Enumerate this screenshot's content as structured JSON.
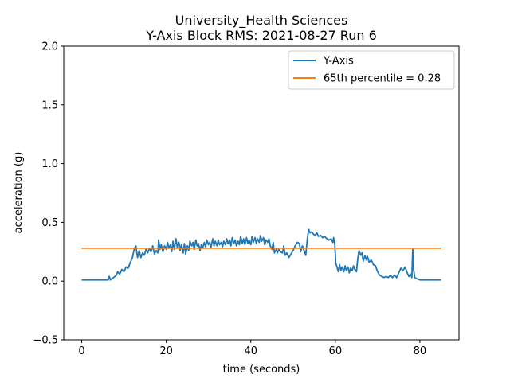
{
  "chart_data": {
    "type": "line",
    "title_line1": "University_Health Sciences",
    "title_line2": "Y-Axis Block RMS: 2021-08-27 Run 6",
    "xlabel": "time (seconds)",
    "ylabel": "acceleration (g)",
    "xlim": [
      -4.25,
      89.25
    ],
    "ylim": [
      -0.5,
      2.0
    ],
    "x_ticks": [
      0,
      20,
      40,
      60,
      80
    ],
    "x_tick_labels": [
      "0",
      "20",
      "40",
      "60",
      "80"
    ],
    "y_ticks": [
      -0.5,
      0.0,
      0.5,
      1.0,
      1.5,
      2.0
    ],
    "y_tick_labels": [
      "−0.5",
      "0.0",
      "0.5",
      "1.0",
      "1.5",
      "2.0"
    ],
    "grid": false,
    "legend_position": "upper-right",
    "series": [
      {
        "name": "Y-Axis",
        "color": "#1f77b4",
        "points": [
          [
            0,
            0.01
          ],
          [
            6.3,
            0.01
          ],
          [
            6.5,
            0.04
          ],
          [
            6.8,
            0.01
          ],
          [
            7.5,
            0.03
          ],
          [
            8.2,
            0.05
          ],
          [
            8.5,
            0.08
          ],
          [
            9,
            0.06
          ],
          [
            9.5,
            0.1
          ],
          [
            10,
            0.08
          ],
          [
            10.5,
            0.12
          ],
          [
            11,
            0.11
          ],
          [
            11.5,
            0.16
          ],
          [
            12,
            0.2
          ],
          [
            12.4,
            0.27
          ],
          [
            12.8,
            0.3
          ],
          [
            13.2,
            0.2
          ],
          [
            13.6,
            0.26
          ],
          [
            14,
            0.2
          ],
          [
            14.4,
            0.24
          ],
          [
            14.8,
            0.22
          ],
          [
            15.2,
            0.27
          ],
          [
            15.6,
            0.24
          ],
          [
            16,
            0.28
          ],
          [
            16.4,
            0.25
          ],
          [
            16.8,
            0.3
          ],
          [
            17.2,
            0.23
          ],
          [
            17.6,
            0.26
          ],
          [
            18,
            0.24
          ],
          [
            18.2,
            0.35
          ],
          [
            18.5,
            0.27
          ],
          [
            18.8,
            0.31
          ],
          [
            19.2,
            0.25
          ],
          [
            19.6,
            0.3
          ],
          [
            20,
            0.27
          ],
          [
            20.3,
            0.33
          ],
          [
            20.6,
            0.28
          ],
          [
            21,
            0.31
          ],
          [
            21.3,
            0.25
          ],
          [
            21.6,
            0.34
          ],
          [
            21.9,
            0.27
          ],
          [
            22.3,
            0.36
          ],
          [
            22.6,
            0.29
          ],
          [
            23,
            0.33
          ],
          [
            23.3,
            0.26
          ],
          [
            23.6,
            0.31
          ],
          [
            24,
            0.24
          ],
          [
            24.3,
            0.32
          ],
          [
            24.6,
            0.23
          ],
          [
            25,
            0.3
          ],
          [
            25.3,
            0.26
          ],
          [
            25.6,
            0.34
          ],
          [
            26,
            0.3
          ],
          [
            26.3,
            0.33
          ],
          [
            26.6,
            0.27
          ],
          [
            27,
            0.35
          ],
          [
            27.3,
            0.3
          ],
          [
            27.6,
            0.32
          ],
          [
            28,
            0.26
          ],
          [
            28.3,
            0.31
          ],
          [
            28.6,
            0.28
          ],
          [
            29,
            0.33
          ],
          [
            29.3,
            0.29
          ],
          [
            29.6,
            0.35
          ],
          [
            30,
            0.31
          ],
          [
            30.3,
            0.33
          ],
          [
            30.6,
            0.29
          ],
          [
            31,
            0.36
          ],
          [
            31.3,
            0.3
          ],
          [
            31.6,
            0.34
          ],
          [
            32,
            0.3
          ],
          [
            32.3,
            0.35
          ],
          [
            32.6,
            0.31
          ],
          [
            33,
            0.33
          ],
          [
            33.3,
            0.29
          ],
          [
            33.6,
            0.34
          ],
          [
            34,
            0.31
          ],
          [
            34.3,
            0.36
          ],
          [
            34.6,
            0.32
          ],
          [
            35,
            0.35
          ],
          [
            35.3,
            0.3
          ],
          [
            35.6,
            0.37
          ],
          [
            36,
            0.32
          ],
          [
            36.3,
            0.35
          ],
          [
            36.6,
            0.3
          ],
          [
            37,
            0.34
          ],
          [
            37.3,
            0.31
          ],
          [
            37.6,
            0.38
          ],
          [
            38,
            0.32
          ],
          [
            38.3,
            0.36
          ],
          [
            38.6,
            0.31
          ],
          [
            39,
            0.37
          ],
          [
            39.3,
            0.32
          ],
          [
            39.6,
            0.35
          ],
          [
            40,
            0.31
          ],
          [
            40.3,
            0.38
          ],
          [
            40.6,
            0.33
          ],
          [
            41,
            0.37
          ],
          [
            41.3,
            0.32
          ],
          [
            41.6,
            0.36
          ],
          [
            42,
            0.33
          ],
          [
            42.3,
            0.39
          ],
          [
            42.6,
            0.34
          ],
          [
            43,
            0.37
          ],
          [
            43.3,
            0.31
          ],
          [
            43.6,
            0.35
          ],
          [
            44,
            0.33
          ],
          [
            44.3,
            0.36
          ],
          [
            44.6,
            0.3
          ],
          [
            45,
            0.27
          ],
          [
            45.3,
            0.33
          ],
          [
            45.6,
            0.24
          ],
          [
            46,
            0.27
          ],
          [
            46.3,
            0.24
          ],
          [
            46.6,
            0.27
          ],
          [
            47,
            0.25
          ],
          [
            47.5,
            0.24
          ],
          [
            47.8,
            0.3
          ],
          [
            48.1,
            0.22
          ],
          [
            48.5,
            0.24
          ],
          [
            49,
            0.2
          ],
          [
            49.5,
            0.23
          ],
          [
            50,
            0.26
          ],
          [
            50.5,
            0.3
          ],
          [
            51,
            0.33
          ],
          [
            51.5,
            0.32
          ],
          [
            51.8,
            0.25
          ],
          [
            52.2,
            0.3
          ],
          [
            52.6,
            0.26
          ],
          [
            53,
            0.22
          ],
          [
            53.4,
            0.37
          ],
          [
            53.7,
            0.44
          ],
          [
            54,
            0.41
          ],
          [
            54.4,
            0.42
          ],
          [
            54.8,
            0.4
          ],
          [
            55.2,
            0.39
          ],
          [
            55.6,
            0.41
          ],
          [
            56,
            0.38
          ],
          [
            56.5,
            0.39
          ],
          [
            57,
            0.37
          ],
          [
            57.5,
            0.38
          ],
          [
            58,
            0.36
          ],
          [
            58.5,
            0.35
          ],
          [
            59,
            0.36
          ],
          [
            59.4,
            0.33
          ],
          [
            59.6,
            0.37
          ],
          [
            59.9,
            0.3
          ],
          [
            60.1,
            0.15
          ],
          [
            60.4,
            0.12
          ],
          [
            60.7,
            0.08
          ],
          [
            61,
            0.14
          ],
          [
            61.3,
            0.09
          ],
          [
            61.6,
            0.12
          ],
          [
            62,
            0.08
          ],
          [
            62.3,
            0.13
          ],
          [
            62.6,
            0.09
          ],
          [
            63,
            0.12
          ],
          [
            63.3,
            0.07
          ],
          [
            63.6,
            0.11
          ],
          [
            64,
            0.09
          ],
          [
            64.3,
            0.13
          ],
          [
            64.6,
            0.1
          ],
          [
            65,
            0.08
          ],
          [
            65.3,
            0.19
          ],
          [
            65.6,
            0.26
          ],
          [
            66,
            0.22
          ],
          [
            66.3,
            0.24
          ],
          [
            66.6,
            0.17
          ],
          [
            67,
            0.22
          ],
          [
            67.3,
            0.18
          ],
          [
            67.6,
            0.21
          ],
          [
            68,
            0.16
          ],
          [
            68.5,
            0.18
          ],
          [
            69,
            0.14
          ],
          [
            69.5,
            0.13
          ],
          [
            70,
            0.08
          ],
          [
            70.5,
            0.05
          ],
          [
            71,
            0.04
          ],
          [
            71.5,
            0.03
          ],
          [
            72,
            0.04
          ],
          [
            72.5,
            0.03
          ],
          [
            73,
            0.05
          ],
          [
            73.5,
            0.03
          ],
          [
            74,
            0.05
          ],
          [
            74.5,
            0.03
          ],
          [
            75,
            0.07
          ],
          [
            75.5,
            0.11
          ],
          [
            76,
            0.09
          ],
          [
            76.5,
            0.12
          ],
          [
            77,
            0.07
          ],
          [
            77.4,
            0.04
          ],
          [
            77.8,
            0.06
          ],
          [
            78.1,
            0.03
          ],
          [
            78.3,
            0.27
          ],
          [
            78.5,
            0.1
          ],
          [
            78.8,
            0.03
          ],
          [
            79.3,
            0.02
          ],
          [
            80,
            0.01
          ],
          [
            85,
            0.01
          ]
        ]
      },
      {
        "name": "65th percentile = 0.28",
        "color": "#ff7f0e",
        "points": [
          [
            0,
            0.28
          ],
          [
            85,
            0.28
          ]
        ]
      }
    ]
  }
}
